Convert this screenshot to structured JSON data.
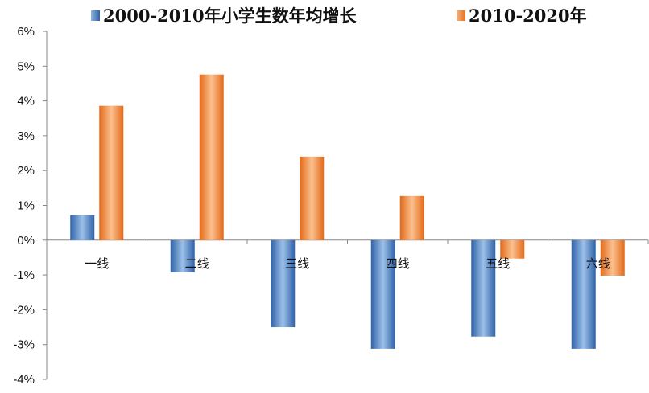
{
  "chart_data": {
    "type": "bar",
    "categories": [
      "一线",
      "二线",
      "三线",
      "四线",
      "五线",
      "六线"
    ],
    "series": [
      {
        "name": "2000-2010年小学生数年均增长",
        "color": "#3b74b8",
        "values": [
          0.72,
          -0.92,
          -2.5,
          -3.12,
          -2.77,
          -3.12
        ]
      },
      {
        "name": "2010-2020年",
        "color": "#ef8030",
        "values": [
          3.86,
          4.76,
          2.4,
          1.27,
          -0.53,
          -1.02
        ]
      }
    ],
    "ylim": [
      -4,
      6
    ],
    "yticks": [
      "-4%",
      "-3%",
      "-2%",
      "-1%",
      "0%",
      "1%",
      "2%",
      "3%",
      "4%",
      "5%",
      "6%"
    ],
    "ytick_values": [
      -4,
      -3,
      -2,
      -1,
      0,
      1,
      2,
      3,
      4,
      5,
      6
    ],
    "legend_position": "top",
    "grid": false
  }
}
